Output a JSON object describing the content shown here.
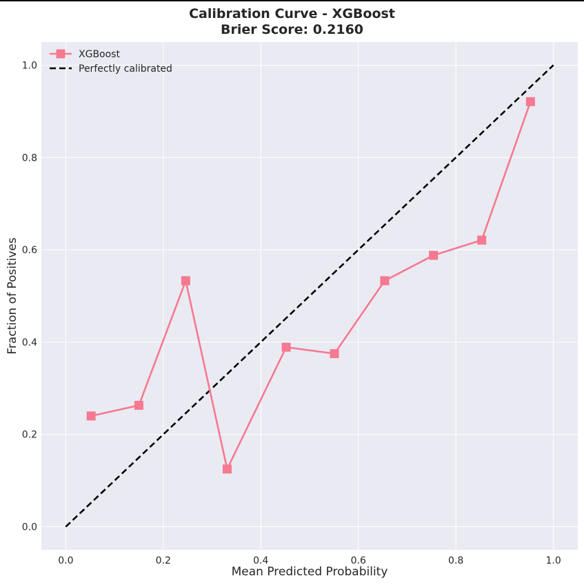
{
  "chart_data": {
    "type": "line",
    "title": "Calibration Curve - XGBoost",
    "subtitle": "Brier Score: 0.2160",
    "xlabel": "Mean Predicted Probability",
    "ylabel": "Fraction of Positives",
    "xlim": [
      -0.05,
      1.05
    ],
    "ylim": [
      -0.05,
      1.05
    ],
    "xticks": [
      "0.0",
      "0.2",
      "0.4",
      "0.6",
      "0.8",
      "1.0"
    ],
    "yticks": [
      "0.0",
      "0.2",
      "0.4",
      "0.6",
      "0.8",
      "1.0"
    ],
    "grid": true,
    "legend_position": "top-left",
    "series": [
      {
        "name": "XGBoost",
        "color": "#f57990",
        "marker": "square",
        "x": [
          0.052,
          0.15,
          0.246,
          0.331,
          0.452,
          0.551,
          0.654,
          0.754,
          0.853,
          0.953
        ],
        "y": [
          0.24,
          0.263,
          0.533,
          0.125,
          0.389,
          0.375,
          0.533,
          0.588,
          0.621,
          0.921
        ]
      },
      {
        "name": "Perfectly calibrated",
        "color": "#000000",
        "dash": "dashed",
        "x": [
          0,
          1
        ],
        "y": [
          0,
          1
        ]
      }
    ]
  }
}
